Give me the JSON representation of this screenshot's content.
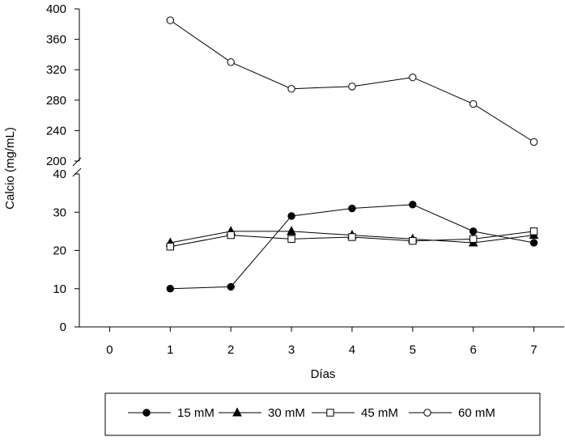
{
  "chart_data": {
    "type": "line",
    "title": "",
    "xlabel": "Días",
    "ylabel": "Calcio (mg/mL)",
    "xlim": [
      -0.5,
      7.5
    ],
    "x_ticks": [
      "0",
      "1",
      "2",
      "3",
      "4",
      "5",
      "6",
      "7"
    ],
    "y_axis_broken": true,
    "y_lower": {
      "ylim": [
        0,
        40
      ],
      "ticks": [
        "0",
        "10",
        "20",
        "30",
        "40"
      ]
    },
    "y_upper": {
      "ylim": [
        200,
        400
      ],
      "ticks": [
        "200",
        "240",
        "280",
        "320",
        "360",
        "400"
      ]
    },
    "grid": false,
    "legend_position": "bottom",
    "x": [
      1,
      2,
      3,
      4,
      5,
      6,
      7
    ],
    "series": [
      {
        "name": "15 mM",
        "marker": "filled-circle",
        "values": [
          10,
          10.5,
          29,
          31,
          32,
          25,
          22
        ]
      },
      {
        "name": "30 mM",
        "marker": "filled-triangle",
        "values": [
          22,
          25,
          25,
          24,
          23,
          22,
          24
        ]
      },
      {
        "name": "45 mM",
        "marker": "open-square",
        "values": [
          21,
          24,
          23,
          23.5,
          22.5,
          23,
          25
        ]
      },
      {
        "name": "60 mM",
        "marker": "open-circle",
        "values": [
          385,
          330,
          295,
          298,
          310,
          275,
          225
        ]
      }
    ]
  }
}
